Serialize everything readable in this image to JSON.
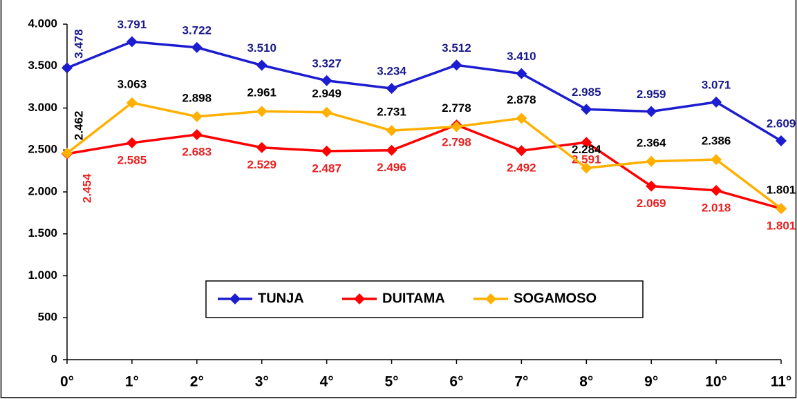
{
  "chart_data": {
    "type": "line",
    "categories": [
      "0°",
      "1°",
      "2°",
      "3°",
      "4°",
      "5°",
      "6°",
      "7°",
      "8°",
      "9°",
      "10°",
      "11°"
    ],
    "series": [
      {
        "name": "TUNJA",
        "color": "#1c1cd0",
        "label_color": "#1a1a8c",
        "values": [
          3478,
          3791,
          3722,
          3510,
          3327,
          3234,
          3512,
          3410,
          2985,
          2959,
          3071,
          2609
        ],
        "value_labels": [
          "3.478",
          "3.791",
          "3.722",
          "3.510",
          "3.327",
          "3.234",
          "3.512",
          "3.410",
          "2.985",
          "2.959",
          "3.071",
          "2.609"
        ]
      },
      {
        "name": "DUITAMA",
        "color": "#ff0000",
        "label_color": "#e82020",
        "values": [
          2454,
          2585,
          2683,
          2529,
          2487,
          2496,
          2798,
          2492,
          2591,
          2069,
          2018,
          1801
        ],
        "value_labels": [
          "2.454",
          "2.585",
          "2.683",
          "2.529",
          "2.487",
          "2.496",
          "2.798",
          "2.492",
          "2.591",
          "2.069",
          "2.018",
          "1.801"
        ]
      },
      {
        "name": "SOGAMOSO",
        "color": "#ffb000",
        "label_color": "#000000",
        "values": [
          2462,
          3063,
          2898,
          2961,
          2949,
          2731,
          2778,
          2878,
          2284,
          2364,
          2386,
          1801
        ],
        "value_labels": [
          "2.462",
          "3.063",
          "2.898",
          "2.961",
          "2.949",
          "2.731",
          "2.778",
          "2.878",
          "2.284",
          "2.364",
          "2.386",
          "1.801"
        ]
      }
    ],
    "ylim": [
      0,
      4000
    ],
    "yticks": [
      0,
      500,
      {
        "value": 1000,
        "label": "1.000"
      },
      {
        "value": 1500,
        "label": "1.500"
      },
      {
        "value": 2000,
        "label": "2.000"
      },
      {
        "value": 2500,
        "label": "2.500"
      },
      {
        "value": 3000,
        "label": "3.000"
      },
      {
        "value": 3500,
        "label": "3.500"
      },
      {
        "value": 4000,
        "label": "4.000"
      }
    ]
  }
}
